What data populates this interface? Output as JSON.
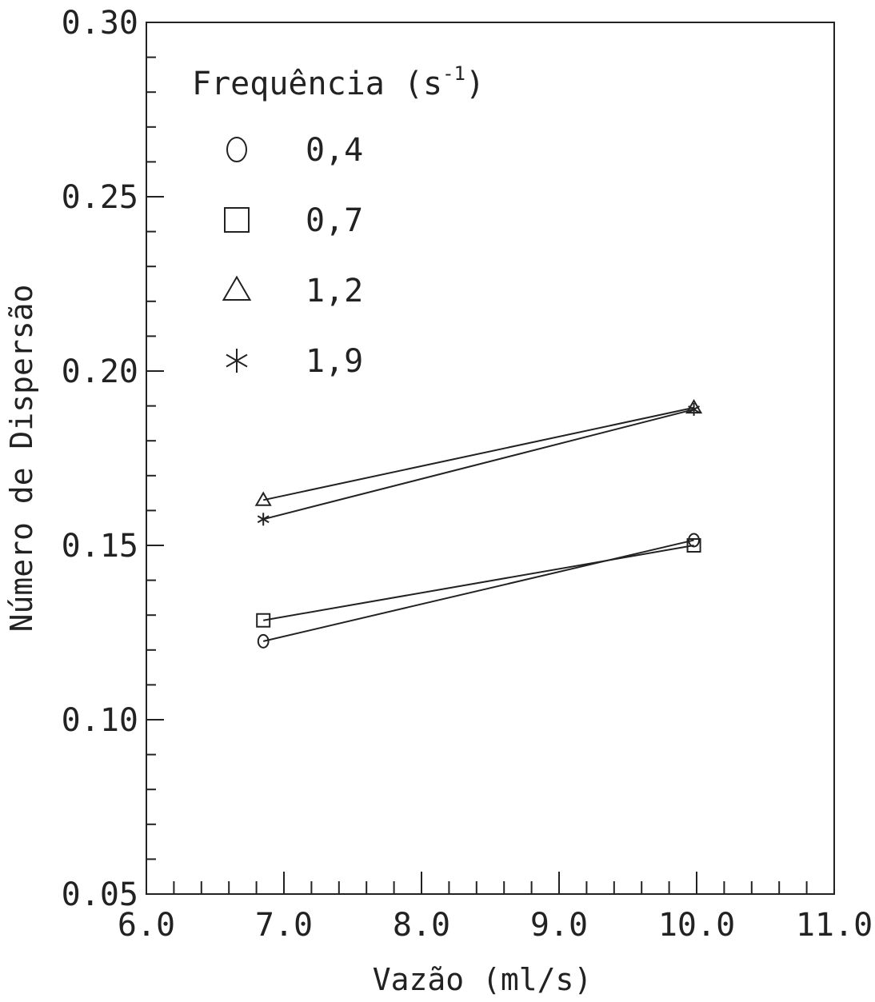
{
  "chart_data": {
    "type": "line",
    "title": "",
    "xlabel": "Vazão (ml/s)",
    "ylabel": "Número de Dispersão",
    "xlim": [
      6.0,
      11.0
    ],
    "ylim": [
      0.05,
      0.3
    ],
    "x_ticks": [
      "6.0",
      "7.0",
      "8.0",
      "9.0",
      "10.0",
      "11.0"
    ],
    "y_ticks": [
      "0.05",
      "0.10",
      "0.15",
      "0.20",
      "0.25",
      "0.30"
    ],
    "grid": false,
    "legend": {
      "title_main": "Frequência (s",
      "title_sup": "-1",
      "title_close": ")",
      "placement": "top-left"
    },
    "series": [
      {
        "name": "0,4",
        "marker": "circle",
        "x": [
          6.85,
          9.98
        ],
        "y": [
          0.1225,
          0.1515
        ]
      },
      {
        "name": "0,7",
        "marker": "square",
        "x": [
          6.85,
          9.98
        ],
        "y": [
          0.1285,
          0.15
        ]
      },
      {
        "name": "1,2",
        "marker": "triangle",
        "x": [
          6.85,
          9.98
        ],
        "y": [
          0.163,
          0.1895
        ]
      },
      {
        "name": "1,9",
        "marker": "asterisk",
        "x": [
          6.85,
          9.98
        ],
        "y": [
          0.1575,
          0.189
        ]
      }
    ],
    "colors": {
      "ink": "#222222",
      "background": "#ffffff"
    }
  }
}
